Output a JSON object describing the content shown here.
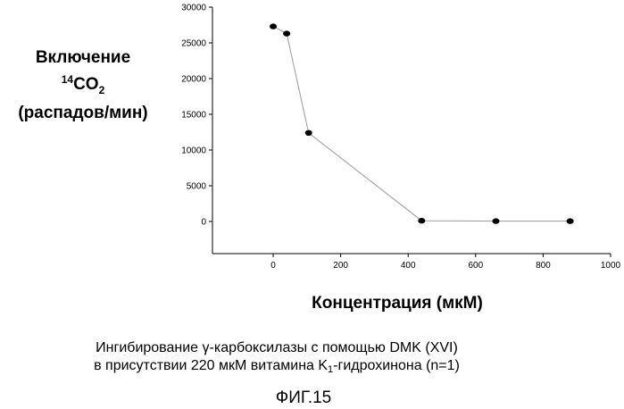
{
  "chart_data": {
    "type": "line",
    "ylabel_line1": "Включение",
    "ylabel_iso": "14",
    "ylabel_formula": "CO",
    "ylabel_formula_sub": "2",
    "ylabel_line3": "(распадов/мин)",
    "xlabel": "Концентрация (мкМ)",
    "x_ticks": [
      "0",
      "200",
      "400",
      "600",
      "800",
      "1000"
    ],
    "y_ticks": [
      "0",
      "5000",
      "10000",
      "15000",
      "20000",
      "25000",
      "30000"
    ],
    "xlim": [
      -180,
      1000
    ],
    "ylim": [
      -4500,
      30000
    ],
    "series": [
      {
        "x": [
          0,
          40,
          105,
          440,
          660,
          880
        ],
        "y": [
          27300,
          26300,
          12400,
          100,
          50,
          50
        ]
      }
    ],
    "line_color": "#9a9a9a",
    "marker_color": "#000000",
    "grid": false,
    "legend": "none"
  },
  "caption": {
    "line1": "Ингибирование γ-карбоксилазы с помощью DMK (XVI)",
    "line2_pre": "в присутствии 220 мкМ витамина K",
    "line2_sub": "1",
    "line2_post": "-гидрохинона (n=1)"
  },
  "figure_label": "ФИГ.15"
}
